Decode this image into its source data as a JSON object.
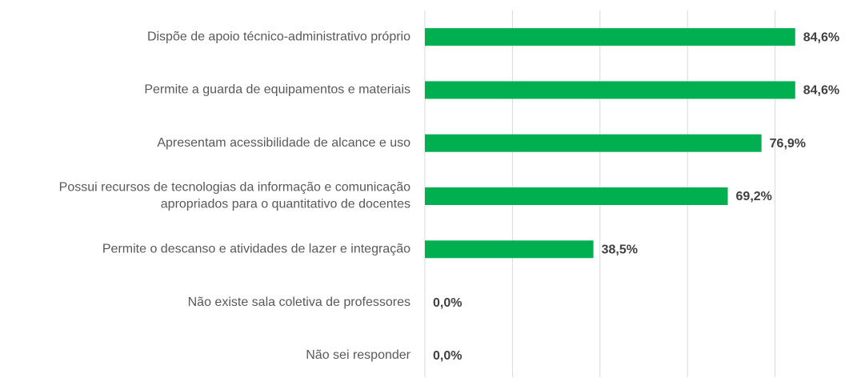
{
  "chart_data": {
    "type": "barh",
    "categories": [
      "Dispõe de apoio técnico-administrativo próprio",
      "Permite a guarda de equipamentos e materiais",
      "Apresentam acessibilidade de alcance e uso",
      "Possui recursos de tecnologias da informação e comunicação\napropriados para o quantitativo de docentes",
      "Permite o descanso e atividades de lazer e integração",
      "Não existe sala coletiva de professores",
      "Não sei responder"
    ],
    "values": [
      84.6,
      84.6,
      76.9,
      69.2,
      38.5,
      0,
      0
    ],
    "value_labels": [
      "84,6%",
      "84,6%",
      "76,9%",
      "69,2%",
      "38,5%",
      "0,0%",
      "0,0%"
    ],
    "color": "#00b050",
    "xlim": [
      0,
      100
    ],
    "xticks": [
      0,
      20,
      40,
      60,
      80
    ],
    "grid": true
  }
}
